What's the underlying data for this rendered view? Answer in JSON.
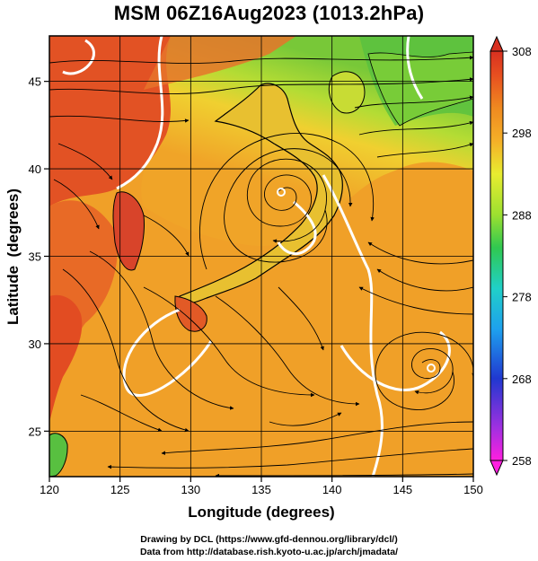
{
  "title": "MSM 06Z16Aug2023 (1013.2hPa)",
  "map": {
    "x_axis": {
      "label": "Longitude (degrees)",
      "range": [
        120,
        150
      ],
      "ticks": [
        120,
        125,
        130,
        135,
        140,
        145,
        150
      ]
    },
    "y_axis": {
      "label": "Latitude  (degrees)",
      "range": [
        22.4,
        47.6
      ],
      "ticks": [
        25,
        30,
        35,
        40,
        45
      ]
    },
    "grid": true,
    "field": "temperature shaded with streamlines and white isotherms",
    "features": {
      "cyclone_centers": [
        {
          "lon": 135.7,
          "lat": 39.6
        },
        {
          "lon": 146.6,
          "lat": 30.1
        }
      ]
    }
  },
  "colorbar": {
    "ticks": [
      308,
      298,
      288,
      278,
      268,
      258
    ],
    "range": [
      258,
      308
    ],
    "colors": [
      "#ff1fe0",
      "#a030e0",
      "#2038d0",
      "#1ea0ee",
      "#20d0c8",
      "#30c850",
      "#9ce030",
      "#e8ec30",
      "#f5b028",
      "#ef8a20",
      "#e85020",
      "#d83020"
    ]
  },
  "credits": {
    "line1": "Drawing by DCL (https://www.gfd-dennou.org/library/dcl/)",
    "line2": "Data from http://database.rish.kyoto-u.ac.jp/arch/jmadata/"
  }
}
